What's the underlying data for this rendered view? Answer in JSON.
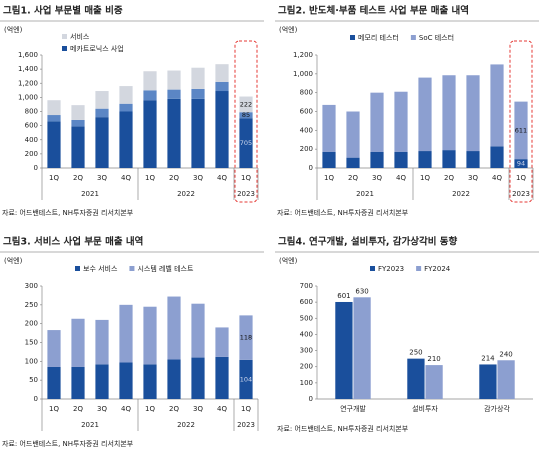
{
  "chart_data": [
    {
      "type": "stacked_bar",
      "title": "그림1. 사업 부문별 매출 비중",
      "unit": "(억엔)",
      "source": "자료: 어드밴테스트, NH투자증권 리서치본부",
      "categories": [
        "1Q",
        "2Q",
        "3Q",
        "4Q",
        "1Q",
        "2Q",
        "3Q",
        "4Q",
        "1Q"
      ],
      "groups": [
        {
          "name": "2021",
          "count": 4
        },
        {
          "name": "2022",
          "count": 4
        },
        {
          "name": "2023",
          "count": 1
        }
      ],
      "series": [
        {
          "name": "메카트로닉스 사업",
          "color": "#1a4f9c",
          "values": [
            660,
            590,
            720,
            800,
            960,
            980,
            980,
            1090,
            705
          ]
        },
        {
          "color": "#5b86c5",
          "values": [
            90,
            90,
            120,
            110,
            140,
            130,
            140,
            130,
            85
          ]
        },
        {
          "name": "서비스",
          "color": "#d3d7df",
          "values": [
            210,
            210,
            250,
            250,
            270,
            270,
            300,
            250,
            222
          ]
        }
      ],
      "ylim": [
        0,
        1600
      ],
      "yticks": [
        0,
        200,
        400,
        600,
        800,
        {
          "value": 1000,
          "label": "1,000"
        },
        {
          "value": 1200,
          "label": "1,200"
        },
        {
          "value": 1400,
          "label": "1,400"
        },
        {
          "value": 1600,
          "label": "1,600"
        }
      ],
      "legend": "vertical",
      "label_last": true,
      "highlight": true,
      "highlight_color": "#e53935"
    },
    {
      "type": "stacked_bar",
      "title": "그림2. 반도체·부품 테스트 사업 부문 매출 내역",
      "unit": "(억엔)",
      "source": "자료: 어드밴테스트, NH투자증권 리서치본부",
      "categories": [
        "1Q",
        "2Q",
        "3Q",
        "4Q",
        "1Q",
        "2Q",
        "3Q",
        "4Q",
        "1Q"
      ],
      "groups": [
        {
          "name": "2021",
          "count": 4
        },
        {
          "name": "2022",
          "count": 4
        },
        {
          "name": "2023",
          "count": 1
        }
      ],
      "series": [
        {
          "name": "메모리 테스터",
          "color": "#1a4f9c",
          "values": [
            170,
            110,
            170,
            170,
            180,
            190,
            180,
            230,
            94
          ]
        },
        {
          "name": "SoC 테스터",
          "color": "#8c9fd0",
          "values": [
            500,
            490,
            630,
            640,
            780,
            795,
            805,
            870,
            611
          ]
        }
      ],
      "ylim": [
        0,
        1200
      ],
      "yticks": [
        0,
        200,
        400,
        600,
        800,
        {
          "value": 1000,
          "label": "1,000"
        },
        {
          "value": 1200,
          "label": "1,200"
        }
      ],
      "legend": "horizontal",
      "label_last": true,
      "highlight": true,
      "highlight_color": "#e53935"
    },
    {
      "type": "stacked_bar",
      "title": "그림3. 서비스 사업 부문 매출 내역",
      "unit": "(억엔)",
      "source": "자료: 어드밴테스트, NH투자증권 리서치본부",
      "categories": [
        "1Q",
        "2Q",
        "3Q",
        "4Q",
        "1Q",
        "2Q",
        "3Q",
        "4Q",
        "1Q"
      ],
      "groups": [
        {
          "name": "2021",
          "count": 4
        },
        {
          "name": "2022",
          "count": 4
        },
        {
          "name": "2023",
          "count": 1
        }
      ],
      "series": [
        {
          "name": "보수 서비스",
          "color": "#1a4f9c",
          "values": [
            85,
            85,
            92,
            97,
            92,
            105,
            110,
            112,
            104
          ]
        },
        {
          "name": "시스템 레벨 테스트",
          "color": "#8c9fd0",
          "values": [
            98,
            128,
            118,
            153,
            153,
            167,
            143,
            78,
            118
          ]
        }
      ],
      "ylim": [
        0,
        300
      ],
      "yticks": [
        0,
        50,
        100,
        150,
        200,
        250,
        300
      ],
      "legend": "horizontal",
      "label_last": true
    },
    {
      "type": "grouped_bar",
      "title": "그림4. 연구개발, 설비투자, 감가상각비 동향",
      "unit": "(억엔)",
      "source": "자료: 어드밴테스트, NH투자증권 리서치본부",
      "categories": [
        "연구개발",
        "설비투자",
        "감가상각"
      ],
      "series": [
        {
          "name": "FY2023",
          "color": "#1a4f9c",
          "values": [
            601,
            250,
            214
          ]
        },
        {
          "name": "FY2024",
          "color": "#8c9fd0",
          "values": [
            630,
            210,
            240
          ]
        }
      ],
      "ylim": [
        0,
        700
      ],
      "yticks": [
        0,
        100,
        200,
        300,
        400,
        500,
        600,
        700
      ],
      "legend": "horizontal",
      "data_labels": true
    }
  ]
}
